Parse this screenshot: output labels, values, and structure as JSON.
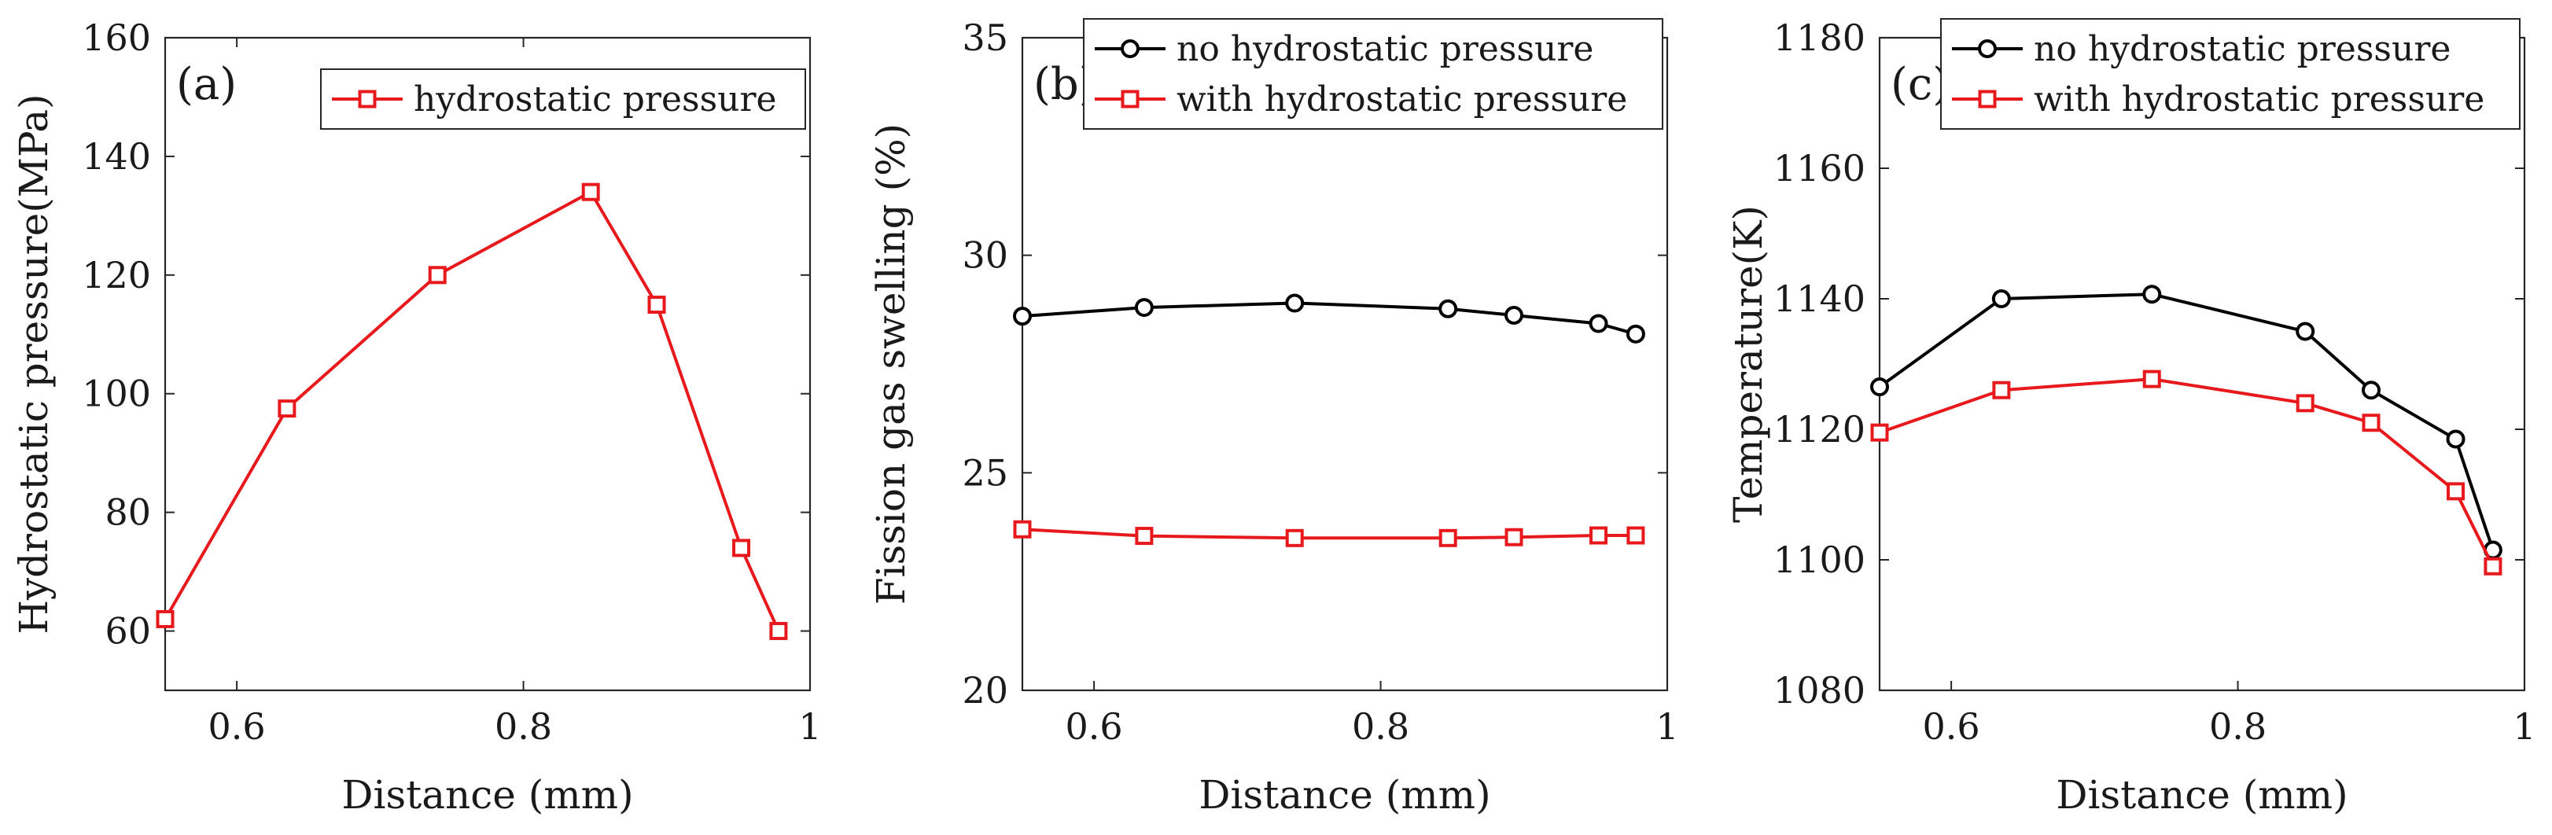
{
  "chart_data": [
    {
      "type": "line",
      "panel_label": "(a)",
      "xlabel": "Distance (mm)",
      "ylabel": "Hydrostatic pressure(MPa)",
      "xlim": [
        0.55,
        1.0
      ],
      "ylim": [
        50,
        160
      ],
      "xticks": [
        0.6,
        0.8,
        1.0
      ],
      "xtick_labels": [
        "0.6",
        "0.8",
        "1"
      ],
      "yticks": [
        60,
        80,
        100,
        120,
        140,
        160
      ],
      "ytick_labels": [
        "60",
        "80",
        "100",
        "120",
        "140",
        "160"
      ],
      "legend_position": "top-right",
      "series": [
        {
          "name": "hydrostatic pressure",
          "color": "#e8191c",
          "marker": "square",
          "x": [
            0.55,
            0.635,
            0.74,
            0.847,
            0.893,
            0.952,
            0.978
          ],
          "values": [
            62,
            97.5,
            120,
            134,
            115,
            74,
            60
          ]
        }
      ]
    },
    {
      "type": "line",
      "panel_label": "(b)",
      "xlabel": "Distance (mm)",
      "ylabel": "Fission gas swelling (%)",
      "xlim": [
        0.55,
        1.0
      ],
      "ylim": [
        20,
        35
      ],
      "xticks": [
        0.6,
        0.8,
        1.0
      ],
      "xtick_labels": [
        "0.6",
        "0.8",
        "1"
      ],
      "yticks": [
        20,
        25,
        30,
        35
      ],
      "ytick_labels": [
        "20",
        "25",
        "30",
        "35"
      ],
      "legend_position": "top-right",
      "series": [
        {
          "name": "no hydrostatic pressure",
          "color": "#000000",
          "marker": "circle",
          "x": [
            0.55,
            0.635,
            0.74,
            0.847,
            0.893,
            0.952,
            0.978
          ],
          "values": [
            28.6,
            28.8,
            28.9,
            28.77,
            28.62,
            28.43,
            28.19
          ]
        },
        {
          "name": "with hydrostatic pressure",
          "color": "#e8191c",
          "marker": "square",
          "x": [
            0.55,
            0.635,
            0.74,
            0.847,
            0.893,
            0.952,
            0.978
          ],
          "values": [
            23.7,
            23.55,
            23.5,
            23.5,
            23.52,
            23.56,
            23.56
          ]
        }
      ]
    },
    {
      "type": "line",
      "panel_label": "(c)",
      "xlabel": "Distance (mm)",
      "ylabel": "Temperature(K)",
      "xlim": [
        0.55,
        1.0
      ],
      "ylim": [
        1080,
        1180
      ],
      "xticks": [
        0.6,
        0.8,
        1.0
      ],
      "xtick_labels": [
        "0.6",
        "0.8",
        "1"
      ],
      "yticks": [
        1080,
        1100,
        1120,
        1140,
        1160,
        1180
      ],
      "ytick_labels": [
        "1080",
        "1100",
        "1120",
        "1140",
        "1160",
        "1180"
      ],
      "legend_position": "top-right",
      "series": [
        {
          "name": "no hydrostatic pressure",
          "color": "#000000",
          "marker": "circle",
          "x": [
            0.55,
            0.635,
            0.74,
            0.847,
            0.893,
            0.952,
            0.978
          ],
          "values": [
            1126.5,
            1140,
            1140.7,
            1135,
            1126,
            1118.5,
            1101.5
          ]
        },
        {
          "name": "with hydrostatic pressure",
          "color": "#e8191c",
          "marker": "square",
          "x": [
            0.55,
            0.635,
            0.74,
            0.847,
            0.893,
            0.952,
            0.978
          ],
          "values": [
            1119.5,
            1126,
            1127.7,
            1124,
            1121,
            1110.5,
            1099
          ]
        }
      ]
    }
  ]
}
